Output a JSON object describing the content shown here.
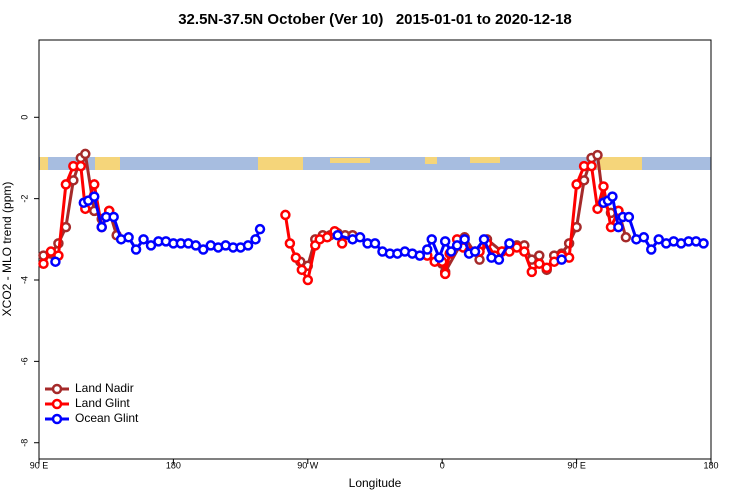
{
  "chart_data": {
    "type": "line",
    "title": "32.5N-37.5N October (Ver 10)   2015-01-01 to 2020-12-18",
    "x_label": "Longitude",
    "y_label": "XCO2 - MLO trend (ppm)",
    "xlim": [
      90,
      540
    ],
    "ylim": [
      -8.4,
      1.9
    ],
    "xticks": [
      {
        "value": 90,
        "label": "90 E"
      },
      180,
      {
        "value": 270,
        "label": "90 W"
      },
      {
        "value": 360,
        "label": "0"
      },
      {
        "value": 450,
        "label": "90 E"
      },
      {
        "value": 540,
        "label": "180"
      }
    ],
    "yticks": [
      -8,
      -6,
      -4,
      -2,
      0
    ],
    "legend": "bottom-left",
    "series": [
      {
        "name": "Land Nadir",
        "color": "#a52a2a",
        "x": [
          93,
          98,
          103,
          108,
          113,
          118,
          121,
          127,
          132,
          137,
          142,
          143,
          265,
          270,
          275,
          280,
          285,
          290,
          295,
          300,
          301,
          360,
          362,
          375,
          385,
          390,
          400,
          405,
          410,
          415,
          420,
          425,
          430,
          435,
          440,
          445,
          450,
          455,
          460,
          464,
          468,
          473,
          478,
          483
        ],
        "values": [
          -3.4,
          -3.35,
          -3.1,
          -2.7,
          -1.55,
          -1.0,
          -0.9,
          -2.3,
          -2.5,
          -2.3,
          -2.9,
          null,
          -3.55,
          -3.65,
          -3.0,
          -2.9,
          -2.9,
          -2.85,
          -2.9,
          -2.9,
          null,
          -3.6,
          -3.8,
          -2.95,
          -3.5,
          -3.0,
          -3.3,
          -3.2,
          -3.15,
          -3.15,
          -3.5,
          -3.4,
          -3.75,
          -3.4,
          -3.35,
          -3.1,
          -2.7,
          -1.55,
          -1.0,
          -0.93,
          -2.1,
          -2.35,
          -2.3,
          -2.95
        ]
      },
      {
        "name": "Land Glint",
        "color": "#ff0000",
        "x": [
          93,
          98,
          103,
          108,
          113,
          118,
          121,
          127,
          132,
          137,
          138,
          255,
          258,
          262,
          266,
          270,
          275,
          278,
          283,
          288,
          293,
          294,
          350,
          355,
          360,
          362,
          365,
          370,
          374,
          378,
          382,
          385,
          390,
          395,
          400,
          405,
          410,
          415,
          420,
          425,
          430,
          435,
          440,
          445,
          450,
          455,
          460,
          464,
          468,
          473,
          478
        ],
        "values": [
          -3.6,
          -3.3,
          -3.4,
          -1.65,
          -1.2,
          -1.2,
          -2.25,
          -1.65,
          -2.7,
          -2.3,
          null,
          -2.4,
          -3.1,
          -3.45,
          -3.75,
          -4.0,
          -3.15,
          -3.0,
          -2.95,
          -2.8,
          -3.1,
          null,
          -3.4,
          -3.55,
          -3.55,
          -3.85,
          -3.35,
          -3.0,
          -3.2,
          -3.3,
          -3.3,
          -3.3,
          -3.1,
          -3.4,
          -3.3,
          -3.3,
          -3.2,
          -3.3,
          -3.8,
          -3.6,
          -3.7,
          -3.55,
          -3.4,
          -3.45,
          -1.65,
          -1.2,
          -1.2,
          -2.25,
          -1.7,
          -2.7,
          -2.3
        ]
      },
      {
        "name": "Ocean Glint",
        "color": "#0000ff",
        "x": [
          101,
          102,
          120,
          123,
          127,
          132,
          135,
          140,
          145,
          150,
          155,
          160,
          165,
          170,
          175,
          180,
          185,
          190,
          195,
          200,
          205,
          210,
          215,
          220,
          225,
          230,
          235,
          238,
          239,
          290,
          300,
          305,
          310,
          315,
          320,
          325,
          330,
          335,
          340,
          345,
          350,
          353,
          358,
          362,
          366,
          370,
          375,
          378,
          382,
          388,
          393,
          398,
          405,
          406,
          440,
          441,
          468,
          471,
          474,
          478,
          481,
          485,
          490,
          495,
          500,
          505,
          510,
          515,
          520,
          525,
          530,
          535
        ],
        "values": [
          -3.55,
          null,
          -2.1,
          -2.05,
          -1.95,
          -2.7,
          -2.45,
          -2.45,
          -3.0,
          -2.95,
          -3.25,
          -3.0,
          -3.15,
          -3.05,
          -3.05,
          -3.1,
          -3.1,
          -3.1,
          -3.15,
          -3.25,
          -3.15,
          -3.2,
          -3.15,
          -3.2,
          -3.2,
          -3.15,
          -3.0,
          -2.75,
          null,
          -2.9,
          -3.0,
          -2.95,
          -3.1,
          -3.1,
          -3.3,
          -3.35,
          -3.35,
          -3.3,
          -3.35,
          -3.4,
          -3.25,
          -3.0,
          -3.45,
          -3.05,
          -3.3,
          -3.15,
          -3.0,
          -3.35,
          -3.3,
          -3.0,
          -3.45,
          -3.5,
          -3.1,
          null,
          -3.5,
          null,
          -2.1,
          -2.05,
          -1.95,
          -2.7,
          -2.45,
          -2.45,
          -3.0,
          -2.95,
          -3.25,
          -3.0,
          -3.1,
          -3.05,
          -3.1,
          -3.05,
          -3.05,
          -3.1
        ]
      }
    ]
  }
}
